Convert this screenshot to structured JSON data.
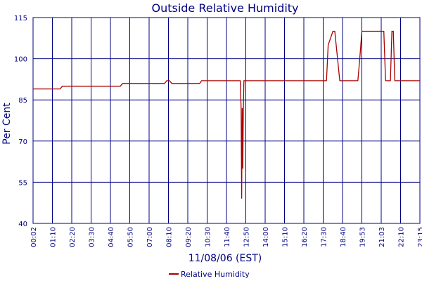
{
  "colors": {
    "grid": "#000080",
    "series": "#aa0000",
    "text": "#000080",
    "background": "#ffffff"
  },
  "chart_data": {
    "type": "line",
    "title": "Outside Relative Humidity",
    "xlabel": "11/08/06 (EST)",
    "ylabel": "Per Cent",
    "ylim": [
      40,
      115
    ],
    "yticks": [
      40,
      55,
      70,
      85,
      100,
      115
    ],
    "grid": true,
    "legend": "bottom-center",
    "x_tick_labels": [
      "00:02",
      "01:10",
      "02:20",
      "03:30",
      "04:40",
      "05:50",
      "07:00",
      "08:10",
      "09:20",
      "10:30",
      "11:40",
      "12:50",
      "14:00",
      "15:10",
      "16:20",
      "17:30",
      "18:40",
      "19:53",
      "21:03",
      "22:10",
      "23:15"
    ],
    "series": [
      {
        "name": "Relative Humidity",
        "color": "#aa0000",
        "x": [
          "00:02",
          "01:38",
          "01:46",
          "03:41",
          "03:49",
          "05:16",
          "05:24",
          "06:51",
          "06:59",
          "07:38",
          "07:46",
          "07:56",
          "08:04",
          "08:14",
          "08:22",
          "09:47",
          "09:55",
          "10:03",
          "10:10",
          "12:30",
          "12:33",
          "12:35",
          "12:37",
          "12:39",
          "12:41",
          "12:43",
          "12:45",
          "12:50",
          "13:10",
          "13:20",
          "13:30",
          "13:40",
          "13:50",
          "14:00",
          "15:10",
          "16:20",
          "17:30",
          "17:35",
          "17:42",
          "17:48",
          "18:05",
          "18:12",
          "18:30",
          "18:40",
          "19:10",
          "19:30",
          "19:38",
          "19:45",
          "19:53",
          "20:30",
          "21:03",
          "21:08",
          "21:12",
          "21:18",
          "21:25",
          "21:35",
          "21:40",
          "21:45",
          "21:50",
          "22:00",
          "22:10",
          "23:15"
        ],
        "values": [
          89,
          89,
          90,
          90,
          90,
          90,
          91,
          91,
          91,
          91,
          91,
          91,
          92,
          92,
          91,
          91,
          91,
          91,
          92,
          92,
          82,
          49,
          82,
          60,
          82,
          92,
          92,
          92,
          92,
          92,
          92,
          92,
          92,
          92,
          92,
          92,
          92,
          92,
          92,
          105,
          110,
          110,
          92,
          92,
          92,
          92,
          92,
          100,
          110,
          110,
          110,
          110,
          110,
          92,
          92,
          92,
          110,
          110,
          92,
          92,
          92,
          92
        ]
      }
    ]
  }
}
